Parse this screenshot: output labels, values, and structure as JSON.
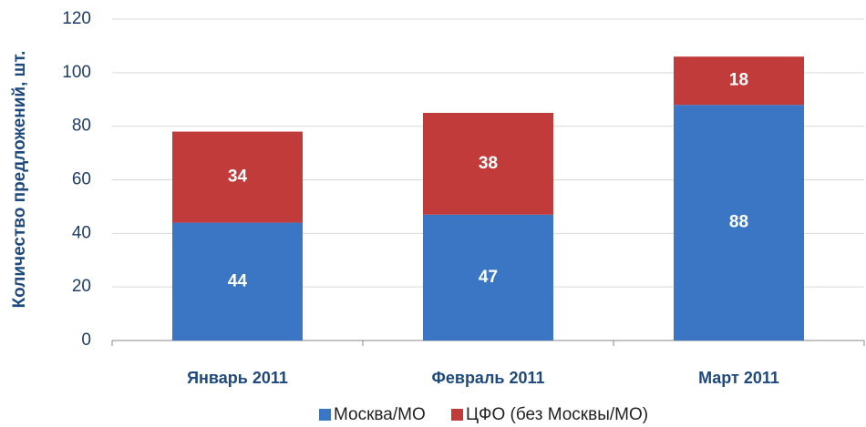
{
  "chart_data": {
    "type": "stacked_bar",
    "y_label": "Количество предложений, шт.",
    "categories": [
      "Январь 2011",
      "Февраль 2011",
      "Март 2011"
    ],
    "series": [
      {
        "name": "Москва/МО",
        "color": "#3b76c5",
        "values": [
          44,
          47,
          88
        ]
      },
      {
        "name": "ЦФО (без Москвы/МО)",
        "color": "#c23b3b",
        "values": [
          34,
          38,
          18
        ]
      }
    ],
    "ylim": [
      0,
      120
    ],
    "yticks": [
      0,
      20,
      40,
      60,
      80,
      100,
      120
    ],
    "grid": true,
    "legend": "bottom"
  }
}
